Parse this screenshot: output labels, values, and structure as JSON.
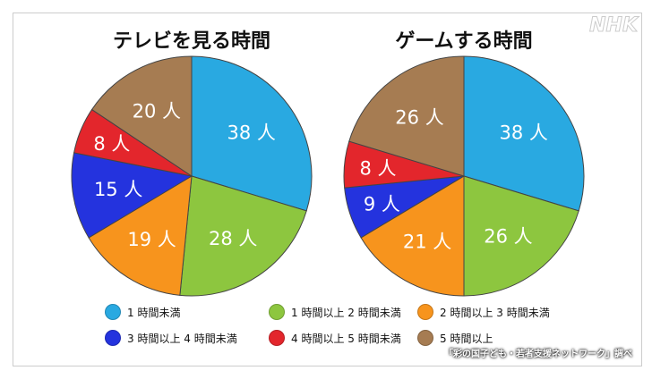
{
  "logo": "NHK",
  "source": "「彩の国子ども・若者支援ネットワーク」調べ",
  "colors": [
    "#29a9e1",
    "#8dc63f",
    "#f7941d",
    "#2433de",
    "#e3262c",
    "#a67c52"
  ],
  "legend": [
    "1 時間未満",
    "1 時間以上 2 時間未満",
    "2 時間以上 3 時間未満",
    "3 時間以上 4 時間未満",
    "4 時間以上 5 時間未満",
    "5 時間以上"
  ],
  "chart_data": [
    {
      "type": "pie",
      "title": "テレビを見る時間",
      "categories": [
        "1 時間未満",
        "1 時間以上 2 時間未満",
        "2 時間以上 3 時間未満",
        "3 時間以上 4 時間未満",
        "4 時間以上 5 時間未満",
        "5 時間以上"
      ],
      "values": [
        38,
        28,
        19,
        15,
        8,
        20
      ],
      "unit": "人"
    },
    {
      "type": "pie",
      "title": "ゲームする時間",
      "categories": [
        "1 時間未満",
        "1 時間以上 2 時間未満",
        "2 時間以上 3 時間未満",
        "3 時間以上 4 時間未満",
        "4 時間以上 5 時間未満",
        "5 時間以上"
      ],
      "values": [
        38,
        26,
        21,
        9,
        8,
        26
      ],
      "unit": "人"
    }
  ]
}
